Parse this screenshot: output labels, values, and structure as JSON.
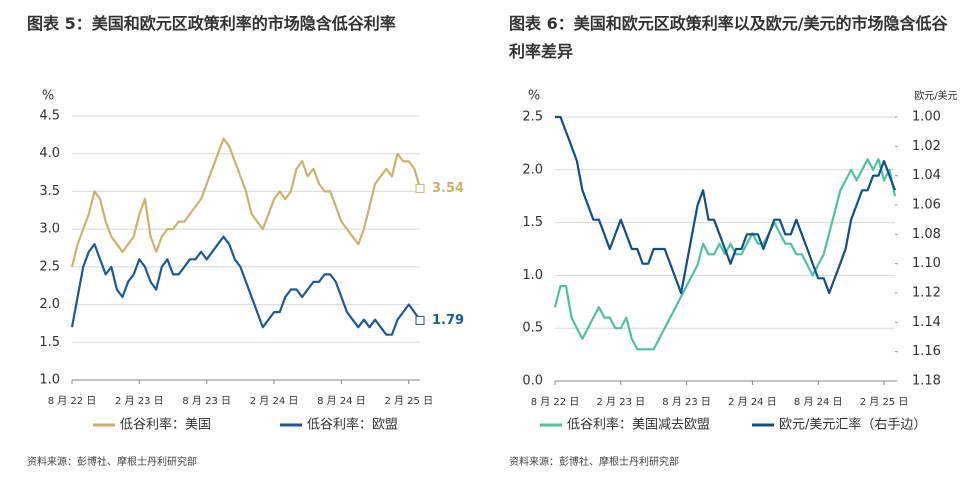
{
  "chart_data": [
    {
      "type": "line",
      "title": "图表 5：美国和欧元区政策利率的市场隐含低谷利率",
      "y_label": "%",
      "source": "资料来源：彭博社、摩根士丹利研究部",
      "categories": [
        "8 月 22 日",
        null,
        null,
        null,
        null,
        null,
        null,
        null,
        null,
        null,
        null,
        null,
        "2 月 23 日",
        null,
        null,
        null,
        null,
        null,
        null,
        null,
        null,
        null,
        null,
        null,
        "8 月 23 日",
        null,
        null,
        null,
        null,
        null,
        null,
        null,
        null,
        null,
        null,
        null,
        "2 月 24 日",
        null,
        null,
        null,
        null,
        null,
        null,
        null,
        null,
        null,
        null,
        null,
        "8 月 24 日",
        null,
        null,
        null,
        null,
        null,
        null,
        null,
        null,
        null,
        null,
        null,
        "2 月 25 日",
        null,
        null
      ],
      "series": [
        {
          "name": "低谷利率：美国",
          "color": "#cdb26e",
          "values": [
            2.5,
            2.8,
            3.0,
            3.2,
            3.5,
            3.4,
            3.1,
            2.9,
            2.8,
            2.7,
            2.8,
            2.9,
            3.2,
            3.4,
            2.9,
            2.7,
            2.9,
            3.0,
            3.0,
            3.1,
            3.1,
            3.2,
            3.3,
            3.4,
            3.6,
            3.8,
            4.0,
            4.2,
            4.1,
            3.9,
            3.7,
            3.5,
            3.2,
            3.1,
            3.0,
            3.2,
            3.4,
            3.5,
            3.4,
            3.5,
            3.8,
            3.9,
            3.7,
            3.8,
            3.6,
            3.5,
            3.5,
            3.3,
            3.1,
            3.0,
            2.9,
            2.8,
            3.0,
            3.3,
            3.6,
            3.7,
            3.8,
            3.7,
            4.0,
            3.9,
            3.9,
            3.8,
            3.54
          ]
        },
        {
          "name": "低谷利率：欧盟",
          "color": "#1a5a9c",
          "values": [
            1.7,
            2.1,
            2.5,
            2.7,
            2.8,
            2.6,
            2.4,
            2.5,
            2.2,
            2.1,
            2.3,
            2.4,
            2.6,
            2.5,
            2.3,
            2.2,
            2.5,
            2.6,
            2.4,
            2.4,
            2.5,
            2.6,
            2.6,
            2.7,
            2.6,
            2.7,
            2.8,
            2.9,
            2.8,
            2.6,
            2.5,
            2.3,
            2.1,
            1.9,
            1.7,
            1.8,
            1.9,
            1.9,
            2.1,
            2.2,
            2.2,
            2.1,
            2.2,
            2.3,
            2.3,
            2.4,
            2.4,
            2.3,
            2.1,
            1.9,
            1.8,
            1.7,
            1.8,
            1.7,
            1.8,
            1.7,
            1.6,
            1.6,
            1.8,
            1.9,
            2.0,
            1.9,
            1.79
          ]
        }
      ],
      "ylim": [
        1.0,
        4.5
      ],
      "yticks": [
        {
          "value": 1.0,
          "label": "1.0"
        },
        1.5,
        {
          "value": 2.0,
          "label": "2.0"
        },
        2.5,
        {
          "value": 3.0,
          "label": "3.0"
        },
        3.5,
        {
          "value": 4.0,
          "label": "4.0"
        },
        4.5
      ],
      "grid": true,
      "data_labels": "last"
    },
    {
      "type": "line",
      "title": "图表 6：美国和欧元区政策利率以及欧元/美元的市场隐含低谷利率差异",
      "y_label": "%",
      "y2_label": "欧元/美元",
      "source": "资料来源：彭博社、摩根士丹利研究部",
      "categories": [
        "8 月 22 日",
        null,
        null,
        null,
        null,
        null,
        null,
        null,
        null,
        null,
        null,
        null,
        "2 月 23 日",
        null,
        null,
        null,
        null,
        null,
        null,
        null,
        null,
        null,
        null,
        null,
        "8 月 23 日",
        null,
        null,
        null,
        null,
        null,
        null,
        null,
        null,
        null,
        null,
        null,
        "2 月 24 日",
        null,
        null,
        null,
        null,
        null,
        null,
        null,
        null,
        null,
        null,
        null,
        "8 月 24 日",
        null,
        null,
        null,
        null,
        null,
        null,
        null,
        null,
        null,
        null,
        null,
        "2 月 25 日",
        null,
        null
      ],
      "series": [
        {
          "name": "低谷利率：美国减去欧盟",
          "color": "#4cc3a0",
          "values": [
            0.7,
            0.9,
            0.9,
            0.6,
            0.5,
            0.4,
            0.5,
            0.6,
            0.7,
            0.6,
            0.6,
            0.5,
            0.5,
            0.6,
            0.4,
            0.3,
            0.3,
            0.3,
            0.3,
            0.4,
            0.5,
            0.6,
            0.7,
            0.8,
            0.9,
            1.0,
            1.1,
            1.3,
            1.2,
            1.2,
            1.3,
            1.2,
            1.3,
            1.2,
            1.2,
            1.3,
            1.4,
            1.3,
            1.3,
            1.4,
            1.5,
            1.4,
            1.3,
            1.3,
            1.2,
            1.2,
            1.1,
            1.0,
            1.1,
            1.2,
            1.4,
            1.6,
            1.8,
            1.9,
            2.0,
            1.9,
            2.0,
            2.1,
            2.0,
            2.1,
            1.9,
            2.0,
            1.75
          ]
        },
        {
          "name": "欧元/美元汇率（右手边）",
          "color": "#0f4f8c",
          "axis": "y2",
          "values": [
            1.0,
            1.0,
            1.01,
            1.02,
            1.03,
            1.05,
            1.06,
            1.07,
            1.07,
            1.08,
            1.09,
            1.08,
            1.07,
            1.08,
            1.09,
            1.09,
            1.1,
            1.1,
            1.09,
            1.09,
            1.09,
            1.1,
            1.11,
            1.12,
            1.1,
            1.08,
            1.06,
            1.05,
            1.07,
            1.07,
            1.08,
            1.09,
            1.1,
            1.09,
            1.09,
            1.08,
            1.08,
            1.08,
            1.09,
            1.08,
            1.07,
            1.07,
            1.08,
            1.08,
            1.07,
            1.08,
            1.09,
            1.1,
            1.11,
            1.11,
            1.12,
            1.11,
            1.1,
            1.09,
            1.07,
            1.06,
            1.05,
            1.05,
            1.04,
            1.04,
            1.03,
            1.04,
            1.05
          ]
        }
      ],
      "ylim": [
        0.0,
        2.5
      ],
      "yticks": [
        {
          "value": 0.0,
          "label": "0.0"
        },
        0.5,
        {
          "value": 1.0,
          "label": "1.0"
        },
        1.5,
        {
          "value": 2.0,
          "label": "2.0"
        },
        2.5
      ],
      "y2lim": [
        1.18,
        1.0
      ],
      "y2ticks": [
        {
          "value": 1.0,
          "label": "1.00"
        },
        1.02,
        1.04,
        1.06,
        1.08,
        {
          "value": 1.1,
          "label": "1.10"
        },
        1.12,
        1.14,
        1.16,
        1.18
      ],
      "grid": true
    }
  ]
}
